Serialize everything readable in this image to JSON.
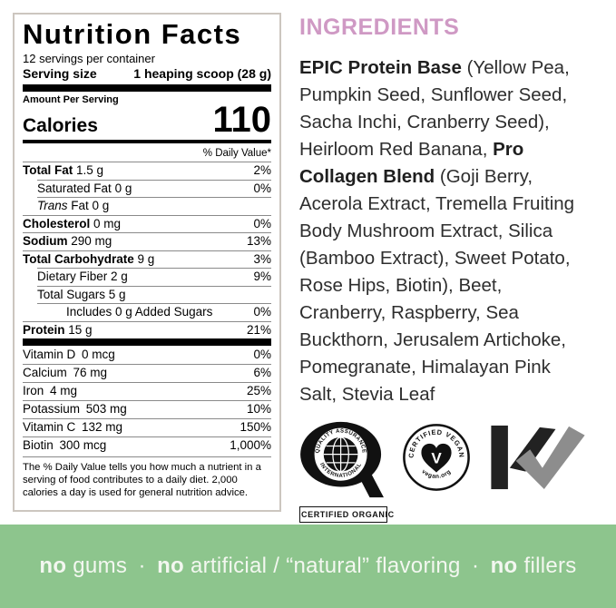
{
  "nutrition_label": {
    "title": "Nutrition Facts",
    "servings_per_container": "12 servings per container",
    "serving_size_label": "Serving size",
    "serving_size_value": "1 heaping scoop (28 g)",
    "amount_per_serving": "Amount Per Serving",
    "calories_label": "Calories",
    "calories_value": "110",
    "daily_value_header": "% Daily Value*",
    "rows": [
      {
        "name": "Total Fat",
        "amount": "1.5 g",
        "dv": "2%",
        "bold": true,
        "indent": 0
      },
      {
        "name": "Saturated Fat",
        "amount": "0 g",
        "dv": "0%",
        "bold": false,
        "indent": 1
      },
      {
        "italic": "Trans",
        "name": " Fat",
        "amount": "0 g",
        "dv": "",
        "bold": false,
        "indent": 1
      },
      {
        "name": "Cholesterol",
        "amount": "0 mg",
        "dv": "0%",
        "bold": true,
        "indent": 0
      },
      {
        "name": "Sodium",
        "amount": "290 mg",
        "dv": "13%",
        "bold": true,
        "indent": 0
      },
      {
        "name": "Total Carbohydrate",
        "amount": "9 g",
        "dv": "3%",
        "bold": true,
        "indent": 0
      },
      {
        "name": "Dietary Fiber",
        "amount": "2 g",
        "dv": "9%",
        "bold": false,
        "indent": 1
      },
      {
        "name": "Total Sugars",
        "amount": "5 g",
        "dv": "",
        "bold": false,
        "indent": 1
      },
      {
        "name": "Includes 0 g Added Sugars",
        "amount": "",
        "dv": "0%",
        "bold": false,
        "indent": 2
      },
      {
        "name": "Protein",
        "amount": "15 g",
        "dv": "21%",
        "bold": true,
        "indent": 0
      }
    ],
    "vitamin_rows": [
      {
        "name": "Vitamin D",
        "amount": "0 mcg",
        "dv": "0%"
      },
      {
        "name": "Calcium",
        "amount": "76 mg",
        "dv": "6%"
      },
      {
        "name": "Iron",
        "amount": "4 mg",
        "dv": "25%"
      },
      {
        "name": "Potassium",
        "amount": "503 mg",
        "dv": "10%"
      },
      {
        "name": "Vitamin C",
        "amount": "132 mg",
        "dv": "150%"
      },
      {
        "name": "Biotin",
        "amount": "300 mcg",
        "dv": "1,000%"
      }
    ],
    "footnote": "The % Daily Value tells you how much a nutrient in a serving of food contributes to a daily diet. 2,000 calories a day is used for general nutrition advice."
  },
  "ingredients": {
    "heading": "INGREDIENTS",
    "segments": [
      {
        "text": "EPIC Protein Base",
        "bold": true
      },
      {
        "text": " (Yellow Pea, Pumpkin Seed, Sunflower Seed, Sacha Inchi, Cranberry Seed), Heirloom Red Banana, ",
        "bold": false
      },
      {
        "text": "Pro Collagen Blend",
        "bold": true
      },
      {
        "text": " (Goji Berry, Acerola Extract, Tremella Fruiting Body Mushroom Extract, Silica (Bamboo Extract), Sweet Potato, Rose Hips, Biotin), Beet, Cranberry, Raspberry, Sea Buckthorn, Jerusalem Artichoke, Pomegranate, Himalayan Pink Salt, Stevia Leaf",
        "bold": false
      }
    ]
  },
  "certifications": {
    "qai": {
      "ring_text_top": "QUALITY ASSURANCE",
      "ring_text_bottom": "INTERNATIONAL",
      "caption": "CERTIFIED ORGANIC"
    },
    "vegan": {
      "ring_text_top": "CERTIFIED VEGAN",
      "ring_text_bottom": "vegan.org",
      "letter": "V"
    },
    "kosher": {
      "letters": "KV"
    }
  },
  "banner": {
    "segments": [
      {
        "text": "no",
        "bold": true
      },
      {
        "text": " gums",
        "bold": false
      },
      {
        "text": " · ",
        "bold": false
      },
      {
        "text": "no",
        "bold": true
      },
      {
        "text": " artificial / “natural” flavoring",
        "bold": false
      },
      {
        "text": " · ",
        "bold": false
      },
      {
        "text": "no",
        "bold": true
      },
      {
        "text": " fillers",
        "bold": false
      }
    ]
  },
  "colors": {
    "ingredients_heading_pink": "#cf99c4",
    "banner_green": "#8dc58d",
    "banner_text": "#f3f7f0",
    "label_border": "#ccc6bf",
    "logo_black": "#111111",
    "logo_gray": "#8d8d8d"
  }
}
